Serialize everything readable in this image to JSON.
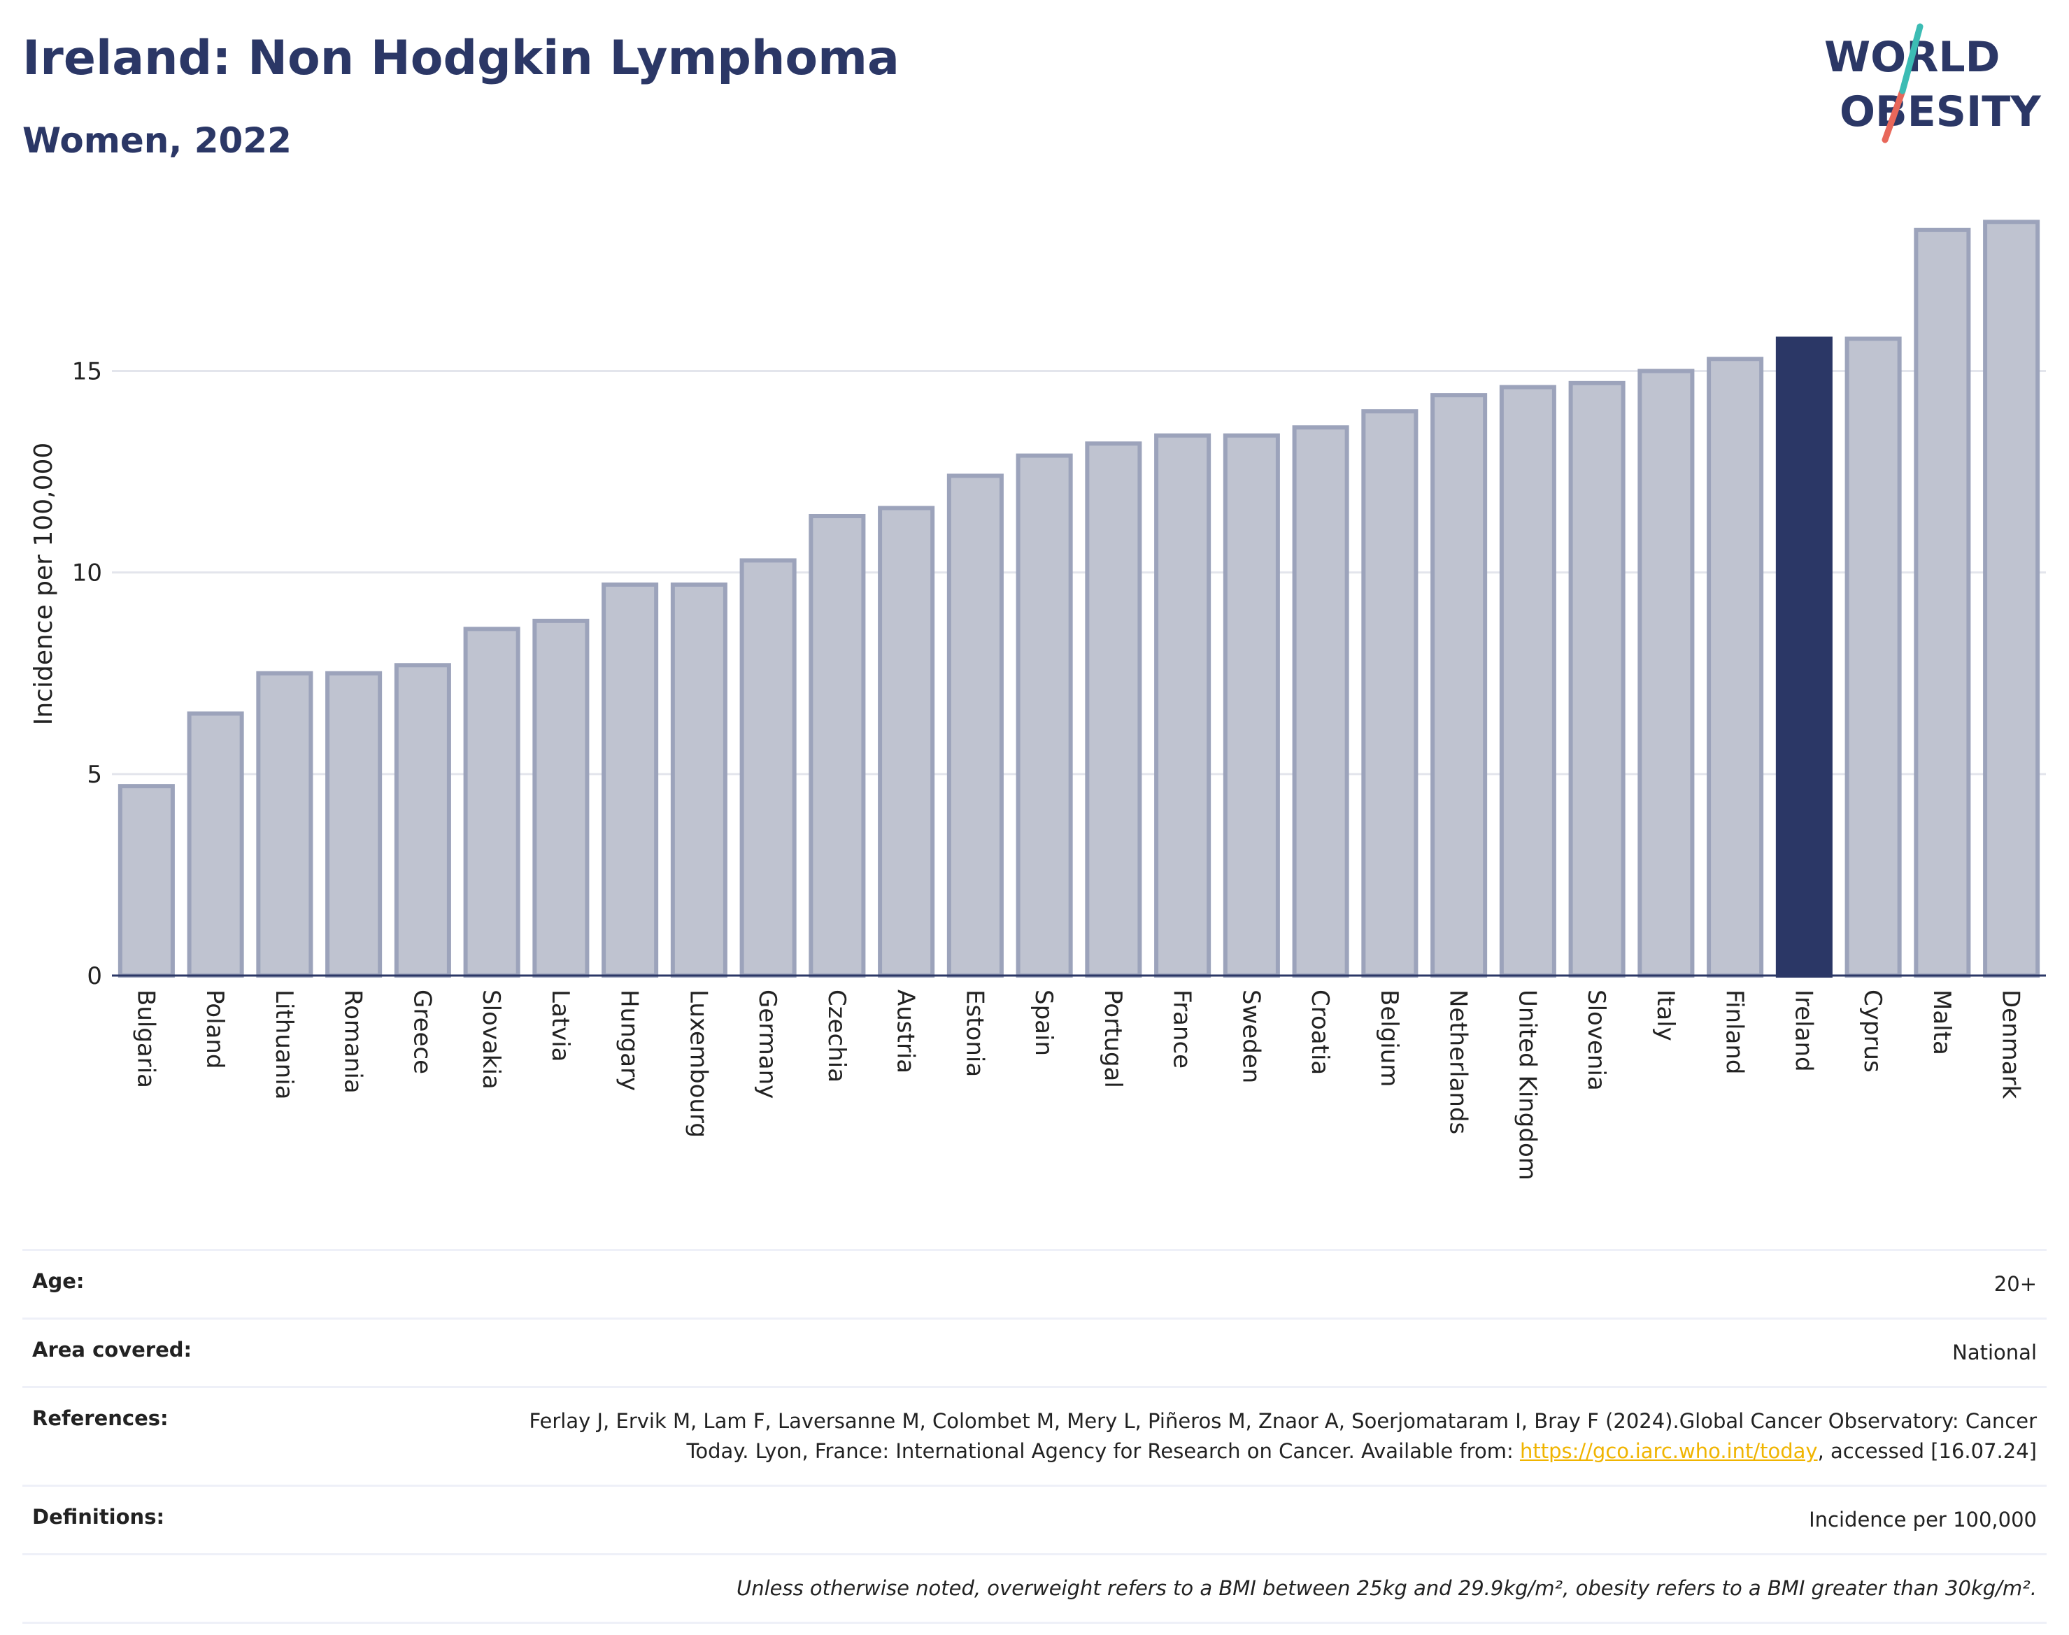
{
  "header": {
    "title": "Ireland: Non Hodgkin Lymphoma",
    "subtitle": "Women, 2022"
  },
  "logo": {
    "line1": "WORLD",
    "line2": "OBESITY",
    "colors": {
      "text": "#2b3766",
      "slash_teal": "#3cbcb4",
      "slash_coral": "#e8675a"
    }
  },
  "colors": {
    "highlight": "#2b3766",
    "bar_fill": "#bfc3d0",
    "bar_stroke": "#9ca3bb",
    "grid": "#e3e5ec",
    "axis": "#2b3766"
  },
  "chart_data": {
    "type": "bar",
    "title": "",
    "xlabel": "",
    "ylabel": "Incidence per 100,000",
    "ylim": [
      0,
      19
    ],
    "yticks": [
      0,
      5,
      10,
      15
    ],
    "grid": true,
    "highlight": "Ireland",
    "categories": [
      "Bulgaria",
      "Poland",
      "Lithuania",
      "Romania",
      "Greece",
      "Slovakia",
      "Latvia",
      "Hungary",
      "Luxembourg",
      "Germany",
      "Czechia",
      "Austria",
      "Estonia",
      "Spain",
      "Portugal",
      "France",
      "Sweden",
      "Croatia",
      "Belgium",
      "Netherlands",
      "United Kingdom",
      "Slovenia",
      "Italy",
      "Finland",
      "Ireland",
      "Cyprus",
      "Malta",
      "Denmark"
    ],
    "values": [
      4.7,
      6.5,
      7.5,
      7.5,
      7.7,
      8.6,
      8.8,
      9.7,
      9.7,
      10.3,
      11.4,
      11.6,
      12.4,
      12.9,
      13.2,
      13.4,
      13.4,
      13.6,
      14.0,
      14.4,
      14.6,
      14.7,
      15.0,
      15.3,
      15.8,
      15.8,
      18.5,
      18.7
    ]
  },
  "meta": {
    "age_label": "Age:",
    "age_value": "20+",
    "area_label": "Area covered:",
    "area_value": "National",
    "references_label": "References:",
    "references_text": "Ferlay J, Ervik M, Lam F, Laversanne M, Colombet M, Mery L, Piñeros M, Znaor A, Soerjomataram I, Bray F (2024).Global Cancer Observatory: Cancer Today. Lyon, France: International Agency for Research on Cancer. Available from:",
    "references_link": "https://gco.iarc.who.int/today",
    "references_suffix": ", accessed [16.07.24]",
    "definitions_label": "Definitions:",
    "definitions_value": "Incidence per 100,000",
    "note": "Unless otherwise noted, overweight refers to a BMI between 25kg and 29.9kg/m², obesity refers to a BMI greater than 30kg/m²."
  }
}
